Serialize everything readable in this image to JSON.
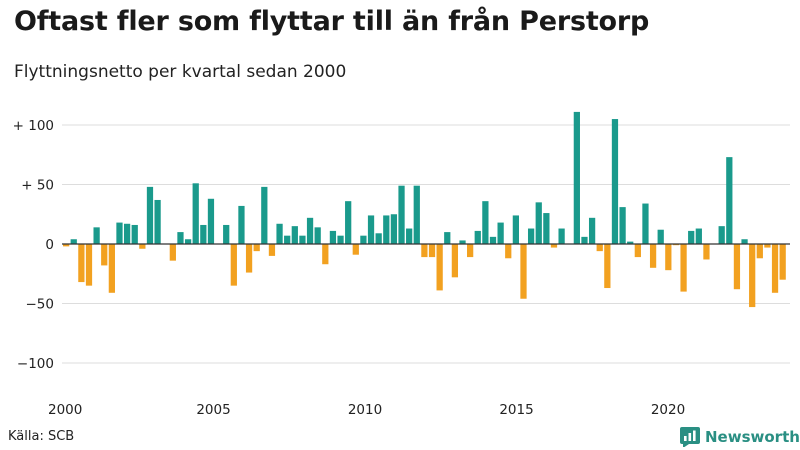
{
  "title": "Oftast fler som flyttar till än från Perstorp",
  "subtitle": "Flyttningsnetto per kvartal sedan 2000",
  "source": "Källa: SCB",
  "brand": "Newsworthy",
  "colors": {
    "positive": "#1a9a8c",
    "negative": "#f2a120",
    "grid": "#dddddd",
    "brand": "#2a8f83"
  },
  "chart_data": {
    "type": "bar",
    "x_start": "2000 Q1",
    "xlim": [
      2000,
      2024
    ],
    "ylim": [
      -110,
      115
    ],
    "y_ticks": [
      100,
      50,
      0,
      -50,
      -100
    ],
    "y_tick_labels": [
      "+ 100",
      "+ 50",
      "0",
      "−50",
      "−100"
    ],
    "x_ticks": [
      2000,
      2005,
      2010,
      2015,
      2020
    ],
    "x_tick_labels": [
      "2000",
      "2005",
      "2010",
      "2015",
      "2020"
    ],
    "grid": true,
    "values": [
      -2,
      4,
      -32,
      -35,
      14,
      -18,
      -41,
      18,
      17,
      16,
      -4,
      48,
      37,
      0,
      -14,
      10,
      4,
      51,
      16,
      38,
      0,
      16,
      -35,
      32,
      -24,
      -6,
      48,
      -10,
      17,
      7,
      15,
      7,
      22,
      14,
      -17,
      11,
      7,
      36,
      -9,
      7,
      24,
      9,
      24,
      25,
      49,
      13,
      49,
      -11,
      -11,
      -39,
      10,
      -28,
      3,
      -11,
      11,
      36,
      6,
      18,
      -12,
      24,
      -46,
      13,
      35,
      26,
      -3,
      13,
      0,
      111,
      6,
      22,
      -6,
      -37,
      105,
      31,
      2,
      -11,
      34,
      -20,
      12,
      -22,
      -1,
      -40,
      11,
      13,
      -13,
      0,
      15,
      73,
      -38,
      4,
      -53,
      -12,
      -3,
      -41,
      -30
    ]
  }
}
